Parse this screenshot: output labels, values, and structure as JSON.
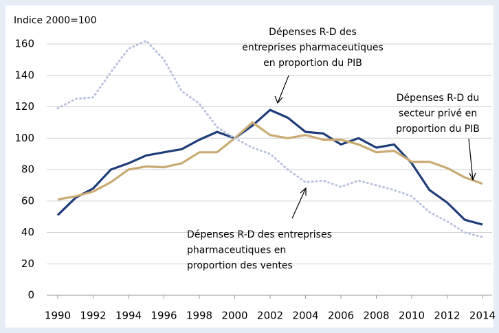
{
  "chart_data": {
    "type": "line",
    "y_axis_label": "Indice 2000=100",
    "x": [
      1990,
      1991,
      1992,
      1993,
      1994,
      1995,
      1996,
      1997,
      1998,
      1999,
      2000,
      2001,
      2002,
      2003,
      2004,
      2005,
      2006,
      2007,
      2008,
      2009,
      2010,
      2011,
      2012,
      2013,
      2014
    ],
    "series": [
      {
        "color": "#1f3d7a",
        "style": "solid",
        "values": [
          51,
          62,
          68,
          80,
          84,
          89,
          91,
          93,
          99,
          104,
          100,
          108,
          118,
          113,
          104,
          103,
          96,
          100,
          94,
          96,
          84,
          67,
          59,
          48,
          45
        ]
      },
      {
        "color": "#c9aa72",
        "style": "solid",
        "values": [
          61,
          63,
          66,
          72,
          80,
          82,
          81.5,
          84,
          91,
          91,
          100,
          110,
          102,
          100,
          102,
          99,
          99,
          96,
          91,
          92,
          85,
          85,
          81,
          75,
          71
        ]
      },
      {
        "color": "#b9c0dd",
        "style": "dotted",
        "values": [
          119,
          125,
          126,
          142,
          157,
          162,
          150,
          130,
          122,
          107,
          100,
          94,
          90,
          80,
          72,
          73,
          69,
          73,
          70,
          67,
          63,
          53,
          47,
          40,
          37
        ]
      }
    ],
    "annotations": [
      {
        "lines": [
          "Dépenses R-D des",
          "entreprises pharmaceutiques",
          "en proportion du PIB"
        ]
      },
      {
        "lines": [
          "Dépenses R-D du",
          "secteur privé en",
          "proportion du PIB"
        ]
      },
      {
        "lines": [
          "Dépenses R-D des entreprises",
          "pharmaceutiques en",
          "proportion des ventes"
        ]
      }
    ],
    "xlim": [
      1990,
      2014
    ],
    "xticks": [
      1990,
      1992,
      1994,
      1996,
      1998,
      2000,
      2002,
      2004,
      2006,
      2008,
      2010,
      2012,
      2014
    ],
    "ylim": [
      0,
      160
    ],
    "yticks": [
      0,
      20,
      40,
      60,
      80,
      100,
      120,
      140,
      160
    ],
    "grid": true
  }
}
